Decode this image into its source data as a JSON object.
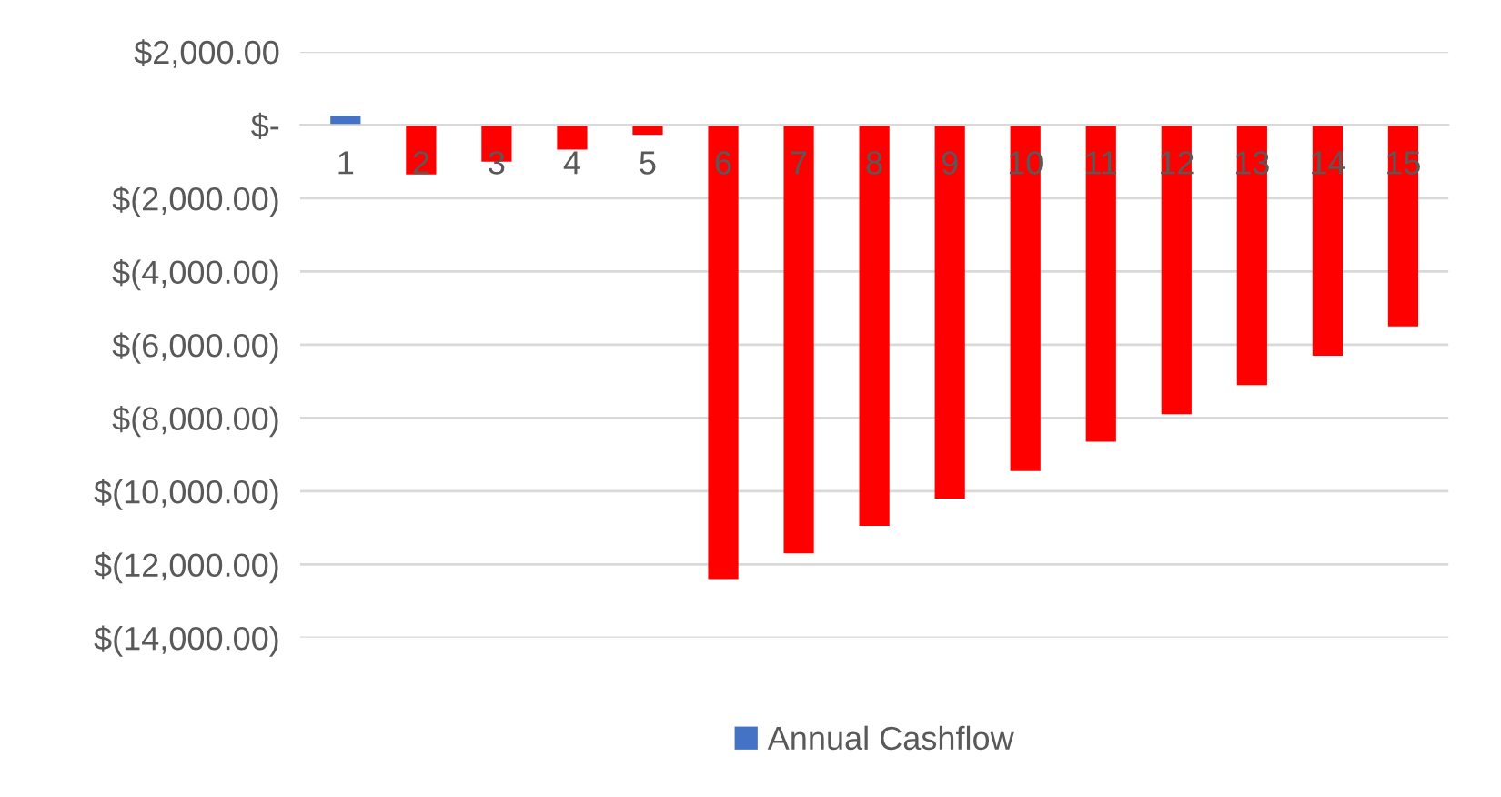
{
  "chart_data": {
    "type": "bar",
    "categories": [
      "1",
      "2",
      "3",
      "4",
      "5",
      "6",
      "7",
      "8",
      "9",
      "10",
      "11",
      "12",
      "13",
      "14",
      "15"
    ],
    "series": [
      {
        "name": "Annual Cashflow",
        "color": "#4472c4",
        "colors": [
          "#4472c4",
          "#ff0000",
          "#ff0000",
          "#ff0000",
          "#ff0000",
          "#ff0000",
          "#ff0000",
          "#ff0000",
          "#ff0000",
          "#ff0000",
          "#ff0000",
          "#ff0000",
          "#ff0000",
          "#ff0000",
          "#ff0000"
        ],
        "values": [
          250,
          -1350,
          -1000,
          -670,
          -270,
          -12400,
          -11700,
          -10950,
          -10200,
          -9450,
          -8650,
          -7900,
          -7100,
          -6300,
          -5500
        ]
      }
    ],
    "ylim": [
      -14000,
      2000
    ],
    "yticks": [
      {
        "value": 2000,
        "label": "$2,000.00"
      },
      {
        "value": 0,
        "label": "$-"
      },
      {
        "value": -2000,
        "label": "$(2,000.00)"
      },
      {
        "value": -4000,
        "label": "$(4,000.00)"
      },
      {
        "value": -6000,
        "label": "$(6,000.00)"
      },
      {
        "value": -8000,
        "label": "$(8,000.00)"
      },
      {
        "value": -10000,
        "label": "$(10,000.00)"
      },
      {
        "value": -12000,
        "label": "$(12,000.00)"
      },
      {
        "value": -14000,
        "label": "$(14,000.00)"
      }
    ],
    "grid": "y",
    "legend": "bottom"
  }
}
